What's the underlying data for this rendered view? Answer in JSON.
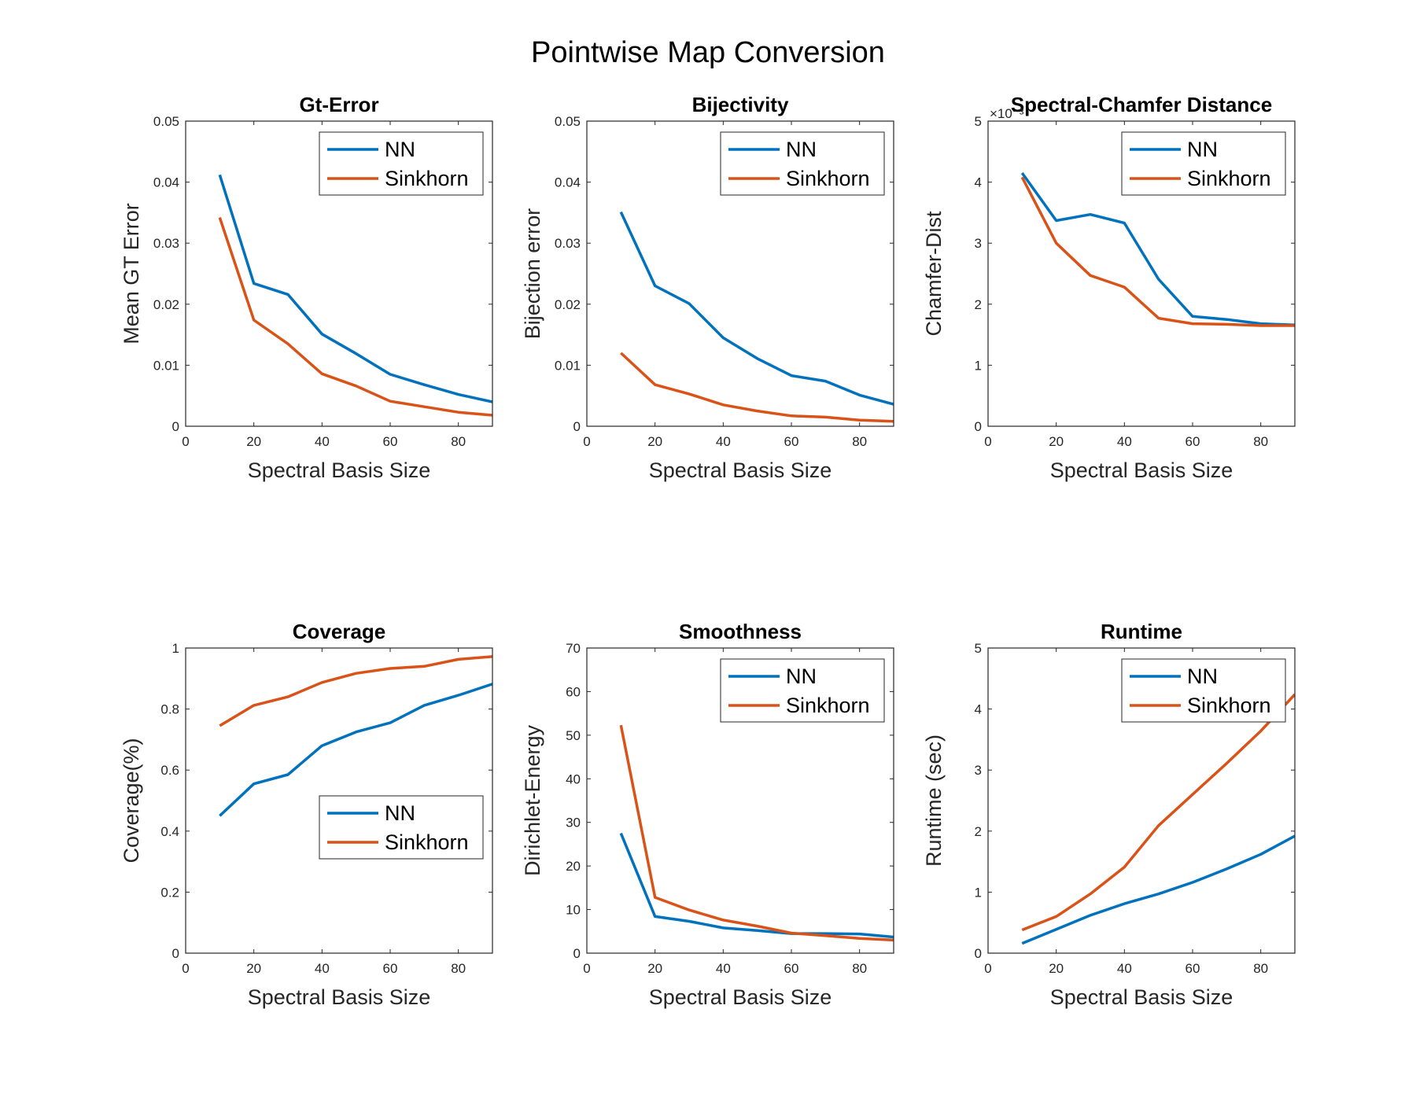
{
  "figure": {
    "title": "Pointwise Map Conversion"
  },
  "colors": {
    "NN": "#0072BD",
    "Sinkhorn": "#D95319",
    "axis": "#262626",
    "frame": "#262626"
  },
  "chart_data": [
    {
      "type": "line",
      "title": "Gt-Error",
      "xlabel": "Spectral Basis Size",
      "ylabel": "Mean GT Error",
      "xlim": [
        0,
        90
      ],
      "ylim": [
        0,
        0.05
      ],
      "xticks": [
        0,
        20,
        40,
        60,
        80
      ],
      "yticks": [
        0,
        0.01,
        0.02,
        0.03,
        0.04,
        0.05
      ],
      "ytick_labels": [
        "0",
        "0.01",
        "0.02",
        "0.03",
        "0.04",
        "0.05"
      ],
      "legend_position": "top-right",
      "x": [
        10,
        20,
        30,
        40,
        50,
        60,
        70,
        80,
        90
      ],
      "series": [
        {
          "name": "NN",
          "values": [
            0.0412,
            0.0234,
            0.0216,
            0.0151,
            0.0119,
            0.0085,
            0.0068,
            0.0052,
            0.004
          ]
        },
        {
          "name": "Sinkhorn",
          "values": [
            0.0342,
            0.0174,
            0.0135,
            0.0086,
            0.0066,
            0.0041,
            0.0032,
            0.0023,
            0.0018
          ]
        }
      ]
    },
    {
      "type": "line",
      "title": "Bijectivity",
      "xlabel": "Spectral Basis Size",
      "ylabel": "Bijection error",
      "xlim": [
        0,
        90
      ],
      "ylim": [
        0,
        0.05
      ],
      "xticks": [
        0,
        20,
        40,
        60,
        80
      ],
      "yticks": [
        0,
        0.01,
        0.02,
        0.03,
        0.04,
        0.05
      ],
      "ytick_labels": [
        "0",
        "0.01",
        "0.02",
        "0.03",
        "0.04",
        "0.05"
      ],
      "legend_position": "top-right",
      "x": [
        10,
        20,
        30,
        40,
        50,
        60,
        70,
        80,
        90
      ],
      "series": [
        {
          "name": "NN",
          "values": [
            0.0351,
            0.023,
            0.0201,
            0.0145,
            0.0111,
            0.0083,
            0.0074,
            0.0051,
            0.0036
          ]
        },
        {
          "name": "Sinkhorn",
          "values": [
            0.012,
            0.0068,
            0.0053,
            0.0035,
            0.0025,
            0.0017,
            0.0015,
            0.001,
            0.0008
          ]
        }
      ]
    },
    {
      "type": "line",
      "title": "Spectral-Chamfer Distance",
      "xlabel": "Spectral Basis Size",
      "ylabel": "Chamfer-Dist",
      "xlim": [
        0,
        90
      ],
      "ylim": [
        0,
        5
      ],
      "xticks": [
        0,
        20,
        40,
        60,
        80
      ],
      "yticks": [
        0,
        1,
        2,
        3,
        4,
        5
      ],
      "ytick_labels": [
        "0",
        "1",
        "2",
        "3",
        "4",
        "5"
      ],
      "y_exponent": "×10⁻³",
      "legend_position": "top-right",
      "x": [
        10,
        20,
        30,
        40,
        50,
        60,
        70,
        80,
        90
      ],
      "series": [
        {
          "name": "NN",
          "values": [
            4.15,
            3.37,
            3.47,
            3.33,
            2.41,
            1.8,
            1.75,
            1.68,
            1.66
          ]
        },
        {
          "name": "Sinkhorn",
          "values": [
            4.08,
            3.0,
            2.47,
            2.28,
            1.77,
            1.68,
            1.67,
            1.65,
            1.65
          ]
        }
      ]
    },
    {
      "type": "line",
      "title": "Coverage",
      "xlabel": "Spectral Basis Size",
      "ylabel": "Coverage(%)",
      "xlim": [
        0,
        90
      ],
      "ylim": [
        0,
        1
      ],
      "xticks": [
        0,
        20,
        40,
        60,
        80
      ],
      "yticks": [
        0,
        0.2,
        0.4,
        0.6,
        0.8,
        1
      ],
      "ytick_labels": [
        "0",
        "0.2",
        "0.4",
        "0.6",
        "0.8",
        "1"
      ],
      "legend_position": "bottom-right",
      "x": [
        10,
        20,
        30,
        40,
        50,
        60,
        70,
        80,
        90
      ],
      "series": [
        {
          "name": "NN",
          "values": [
            0.45,
            0.555,
            0.585,
            0.68,
            0.725,
            0.755,
            0.812,
            0.845,
            0.882
          ]
        },
        {
          "name": "Sinkhorn",
          "values": [
            0.745,
            0.812,
            0.84,
            0.887,
            0.917,
            0.933,
            0.94,
            0.963,
            0.972
          ]
        }
      ]
    },
    {
      "type": "line",
      "title": "Smoothness",
      "xlabel": "Spectral Basis Size",
      "ylabel": "Dirichlet-Energy",
      "xlim": [
        0,
        90
      ],
      "ylim": [
        0,
        70
      ],
      "xticks": [
        0,
        20,
        40,
        60,
        80
      ],
      "yticks": [
        0,
        10,
        20,
        30,
        40,
        50,
        60,
        70
      ],
      "ytick_labels": [
        "0",
        "10",
        "20",
        "30",
        "40",
        "50",
        "60",
        "70"
      ],
      "legend_position": "top-right",
      "x": [
        10,
        20,
        30,
        40,
        50,
        60,
        70,
        80,
        90
      ],
      "series": [
        {
          "name": "NN",
          "values": [
            27.5,
            8.4,
            7.3,
            5.8,
            5.2,
            4.5,
            4.5,
            4.4,
            3.7
          ]
        },
        {
          "name": "Sinkhorn",
          "values": [
            52.3,
            12.8,
            9.9,
            7.6,
            6.2,
            4.6,
            4.0,
            3.4,
            3.0
          ]
        }
      ]
    },
    {
      "type": "line",
      "title": "Runtime",
      "xlabel": "Spectral Basis Size",
      "ylabel": "Runtime (sec)",
      "xlim": [
        0,
        90
      ],
      "ylim": [
        0,
        5
      ],
      "xticks": [
        0,
        20,
        40,
        60,
        80
      ],
      "yticks": [
        0,
        1,
        2,
        3,
        4,
        5
      ],
      "ytick_labels": [
        "0",
        "1",
        "2",
        "3",
        "4",
        "5"
      ],
      "legend_position": "top-right",
      "x": [
        10,
        20,
        30,
        40,
        50,
        60,
        70,
        80,
        90
      ],
      "series": [
        {
          "name": "NN",
          "values": [
            0.16,
            0.39,
            0.62,
            0.81,
            0.97,
            1.16,
            1.38,
            1.62,
            1.92
          ]
        },
        {
          "name": "Sinkhorn",
          "values": [
            0.38,
            0.6,
            0.97,
            1.41,
            2.09,
            2.6,
            3.11,
            3.64,
            4.24
          ]
        }
      ]
    }
  ]
}
